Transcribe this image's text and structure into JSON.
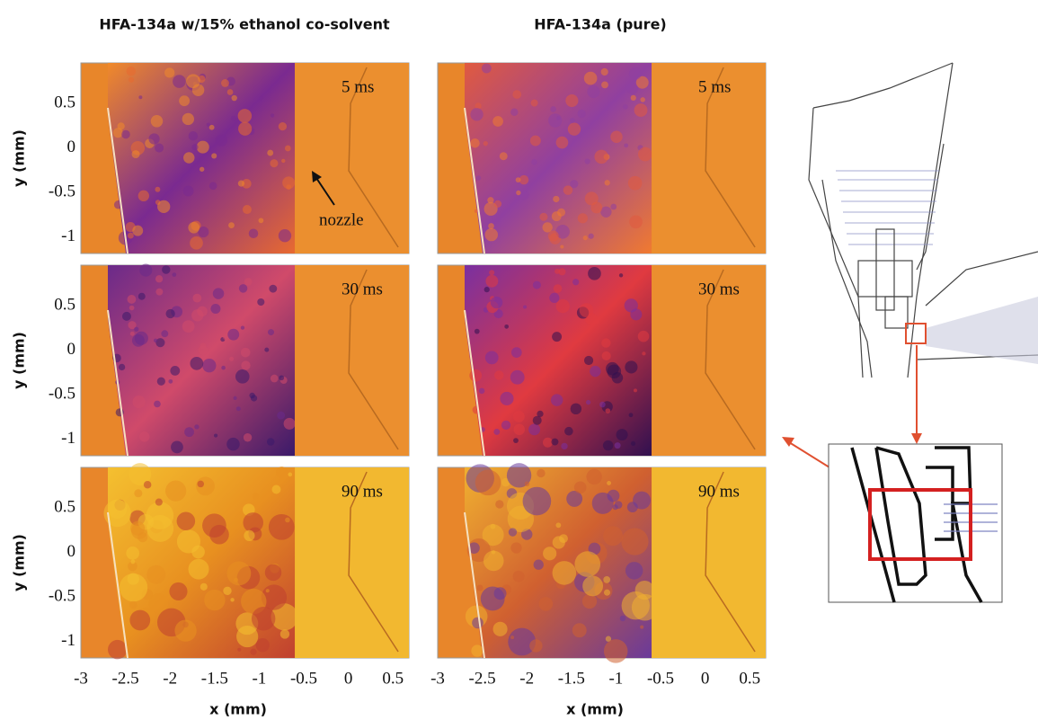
{
  "columns": [
    {
      "title": "HFA-134a w/15% ethanol co-solvent",
      "panels": [
        {
          "time": "5 ms"
        },
        {
          "time": "30 ms"
        },
        {
          "time": "90 ms"
        }
      ]
    },
    {
      "title": "HFA-134a (pure)",
      "panels": [
        {
          "time": "5 ms"
        },
        {
          "time": "30 ms"
        },
        {
          "time": "90 ms"
        }
      ]
    }
  ],
  "annotation": "nozzle",
  "axes": {
    "x_label": "x (mm)",
    "y_label": "y (mm)",
    "xticks": [
      -3,
      -2.5,
      -2,
      -1.5,
      -1,
      -0.5,
      0,
      0.5
    ],
    "yticks": [
      0.5,
      0,
      -0.5,
      -1
    ]
  }
}
